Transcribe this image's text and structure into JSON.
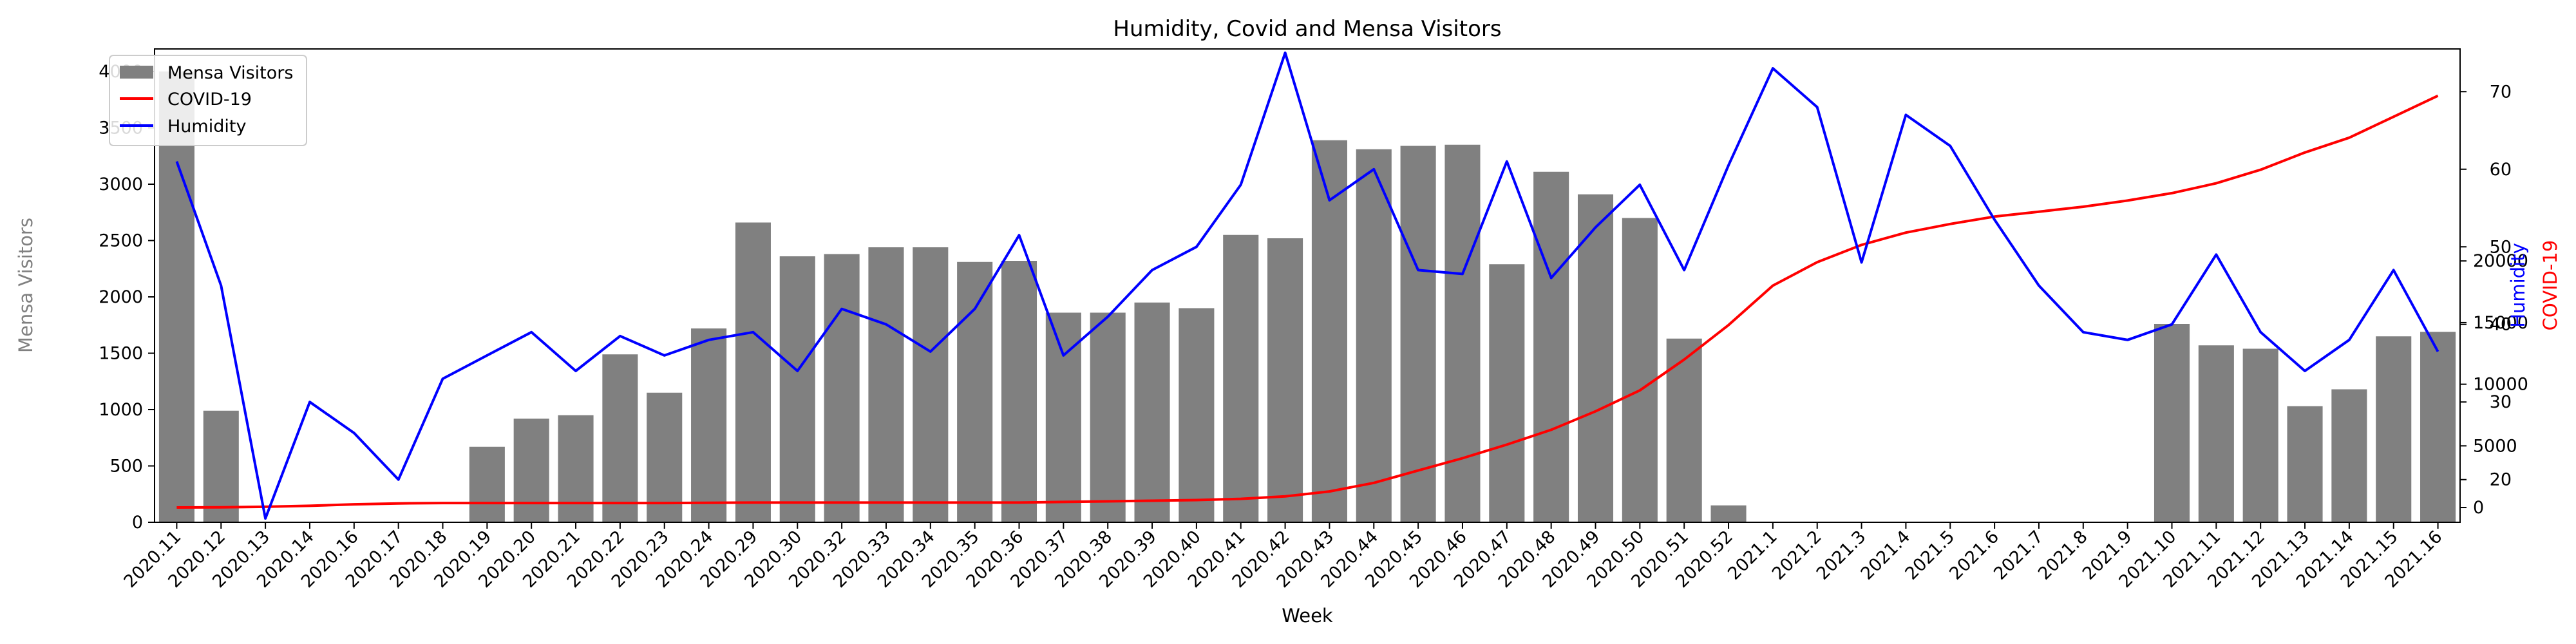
{
  "chart_data": {
    "type": "bar",
    "title": "Humidity, Covid and Mensa Visitors",
    "xlabel": "Week",
    "ylabel_left": "Mensa Visitors",
    "ylabel_right_inner": "Humidity",
    "ylabel_right_outer": "COVID-19",
    "categories": [
      "2020.11",
      "2020.12",
      "2020.13",
      "2020.14",
      "2020.16",
      "2020.17",
      "2020.18",
      "2020.19",
      "2020.20",
      "2020.21",
      "2020.22",
      "2020.23",
      "2020.24",
      "2020.29",
      "2020.30",
      "2020.32",
      "2020.33",
      "2020.34",
      "2020.35",
      "2020.36",
      "2020.37",
      "2020.38",
      "2020.39",
      "2020.40",
      "2020.41",
      "2020.42",
      "2020.43",
      "2020.44",
      "2020.45",
      "2020.46",
      "2020.47",
      "2020.48",
      "2020.49",
      "2020.50",
      "2020.51",
      "2020.52",
      "2021.1",
      "2021.2",
      "2021.3",
      "2021.4",
      "2021.5",
      "2021.6",
      "2021.7",
      "2021.8",
      "2021.9",
      "2021.10",
      "2021.11",
      "2021.12",
      "2021.13",
      "2021.14",
      "2021.15",
      "2021.16"
    ],
    "series": [
      {
        "name": "Mensa Visitors",
        "kind": "bar",
        "axis": "left",
        "color": "#808080",
        "values": [
          4000,
          990,
          0,
          0,
          0,
          0,
          0,
          670,
          920,
          950,
          1490,
          1150,
          1720,
          2660,
          2360,
          2380,
          2440,
          2440,
          2310,
          2320,
          1860,
          1860,
          1950,
          1900,
          2550,
          2520,
          3390,
          3310,
          3340,
          3350,
          2290,
          3110,
          2910,
          2700,
          1630,
          150,
          0,
          0,
          0,
          0,
          0,
          0,
          0,
          0,
          0,
          1760,
          1570,
          1540,
          1030,
          1180,
          1650,
          1690
        ]
      },
      {
        "name": "COVID-19",
        "kind": "line",
        "axis": "right_outer",
        "color": "#ff0000",
        "values": [
          0,
          15,
          60,
          140,
          260,
          330,
          360,
          360,
          360,
          360,
          360,
          360,
          380,
          400,
          400,
          400,
          400,
          400,
          400,
          400,
          450,
          500,
          550,
          600,
          700,
          900,
          1300,
          2000,
          3000,
          4000,
          5100,
          6300,
          7800,
          9500,
          12000,
          14800,
          18000,
          19900,
          21300,
          22300,
          23000,
          23600,
          24000,
          24400,
          24900,
          25500,
          26300,
          27400,
          28800,
          30000,
          31700,
          33400
        ]
      },
      {
        "name": "Humidity",
        "kind": "line",
        "axis": "right_inner",
        "color": "#0000ff",
        "values": [
          61,
          45,
          15,
          30,
          26,
          20,
          33,
          36,
          39,
          34,
          38.5,
          36,
          38,
          39,
          34,
          42,
          40,
          36.5,
          42,
          51.5,
          36,
          41,
          47,
          50,
          58,
          75,
          56,
          60,
          47,
          46.5,
          61,
          46,
          52.5,
          58,
          47,
          60.5,
          73,
          68,
          48,
          67,
          63,
          53.5,
          45,
          39,
          38,
          40,
          49,
          39,
          34,
          38,
          47,
          36.5
        ]
      }
    ],
    "left_axis": {
      "min": 0,
      "max": 4200,
      "ticks": [
        0,
        500,
        1000,
        1500,
        2000,
        2500,
        3000,
        3500,
        4000
      ]
    },
    "right_inner_axis": {
      "min": 14.5,
      "max": 75.5,
      "ticks": [
        20,
        30,
        40,
        50,
        60,
        70
      ]
    },
    "right_outer_axis": {
      "min": -1200,
      "max": 37200,
      "ticks": [
        0,
        5000,
        10000,
        15000,
        20000
      ]
    },
    "legend": {
      "placement": "top-left",
      "entries": [
        {
          "label": "Mensa Visitors",
          "symbol": "patch",
          "color": "#808080"
        },
        {
          "label": "COVID-19",
          "symbol": "line",
          "color": "#ff0000"
        },
        {
          "label": "Humidity",
          "symbol": "line",
          "color": "#0000ff"
        }
      ]
    },
    "grid": false,
    "colors": {
      "left_label": "#808080",
      "humidity_label": "#0000ff",
      "covid_label": "#ff0000"
    }
  }
}
